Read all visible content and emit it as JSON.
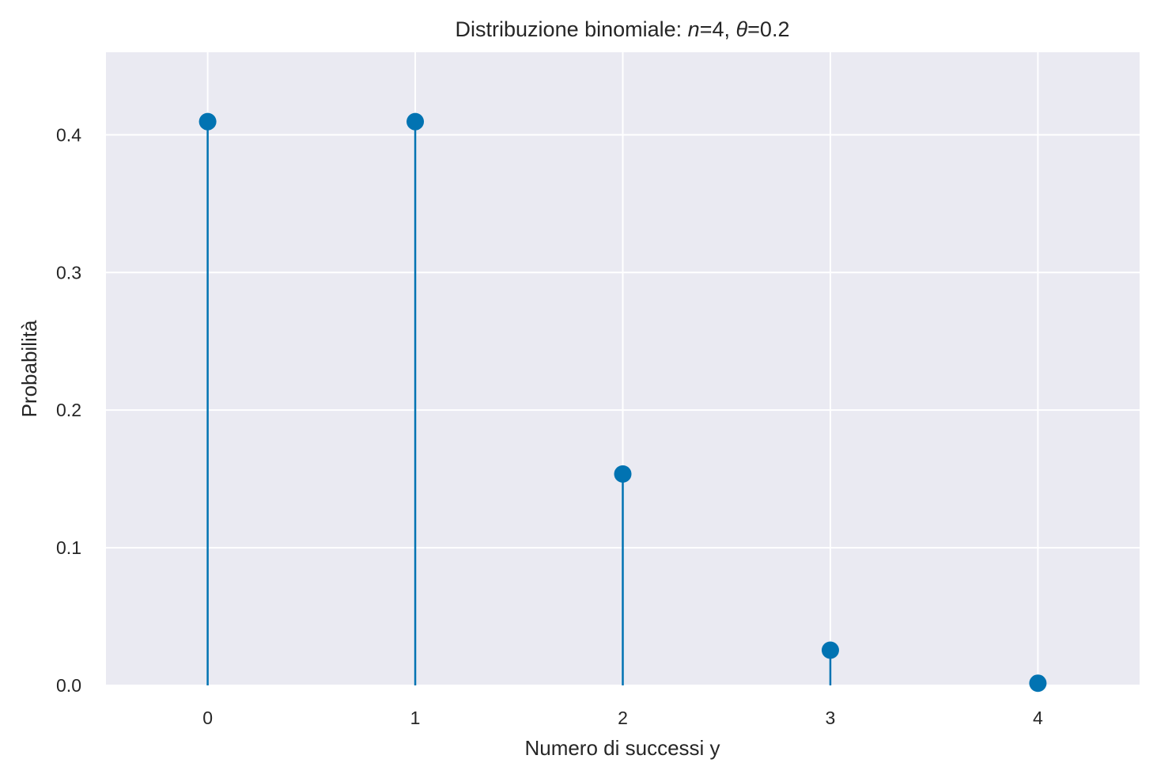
{
  "chart_data": {
    "type": "stem",
    "title_parts": [
      "Distribuzione binomiale: ",
      "n",
      "=4, ",
      "θ",
      "=0.2"
    ],
    "xlabel": "Numero di successi y",
    "ylabel": "Probabilità",
    "x": [
      0,
      1,
      2,
      3,
      4
    ],
    "values": [
      0.4096,
      0.4096,
      0.1536,
      0.0256,
      0.0016
    ],
    "xlim": [
      -0.49,
      4.49
    ],
    "ylim": [
      0,
      0.46
    ],
    "xticks": [
      0,
      1,
      2,
      3,
      4
    ],
    "xtick_labels": [
      "0",
      "1",
      "2",
      "3",
      "4"
    ],
    "yticks": [
      0.0,
      0.1,
      0.2,
      0.3,
      0.4
    ],
    "ytick_labels": [
      "0.0",
      "0.1",
      "0.2",
      "0.3",
      "0.4"
    ],
    "grid": true,
    "colors": {
      "series": "#0173b2",
      "plot_background": "#eaeaf2",
      "grid": "#ffffff",
      "text": "#262626"
    }
  }
}
